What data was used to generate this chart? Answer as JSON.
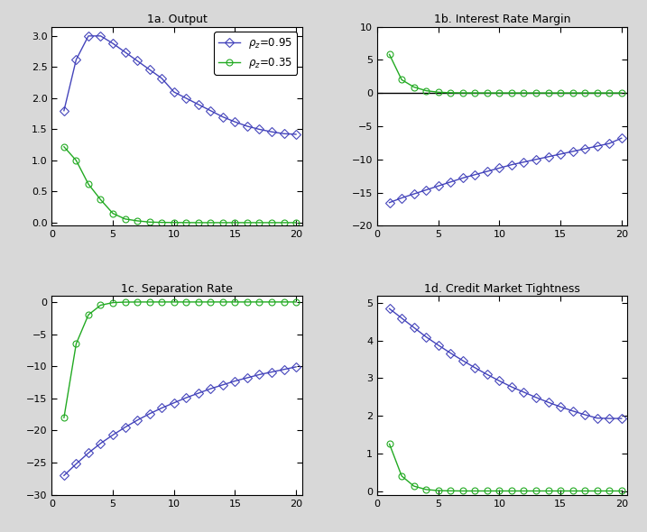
{
  "titles": [
    "1a. Output",
    "1b. Interest Rate Margin",
    "1c. Separation Rate",
    "1d. Credit Market Tightness"
  ],
  "x": [
    1,
    2,
    3,
    4,
    5,
    6,
    7,
    8,
    9,
    10,
    11,
    12,
    13,
    14,
    15,
    16,
    17,
    18,
    19,
    20
  ],
  "output_095": [
    1.8,
    2.62,
    3.0,
    3.0,
    2.88,
    2.74,
    2.6,
    2.46,
    2.32,
    2.1,
    2.0,
    1.9,
    1.8,
    1.7,
    1.62,
    1.55,
    1.5,
    1.46,
    1.43,
    1.42
  ],
  "output_035": [
    1.22,
    1.0,
    0.62,
    0.37,
    0.15,
    0.06,
    0.03,
    0.01,
    0.005,
    0.003,
    0.002,
    0.001,
    0.001,
    0.001,
    0.001,
    0.001,
    0.001,
    0.001,
    0.001,
    0.001
  ],
  "irm_095": [
    -16.5,
    -15.8,
    -15.2,
    -14.6,
    -14.0,
    -13.4,
    -12.8,
    -12.3,
    -11.8,
    -11.3,
    -10.8,
    -10.4,
    -10.0,
    -9.6,
    -9.2,
    -8.8,
    -8.4,
    -8.0,
    -7.6,
    -6.8
  ],
  "irm_035": [
    5.8,
    2.0,
    0.9,
    0.35,
    0.12,
    0.04,
    0.01,
    0.005,
    0.003,
    0.002,
    0.001,
    0.001,
    0.001,
    0.001,
    0.001,
    0.001,
    0.001,
    0.001,
    0.001,
    0.001
  ],
  "sep_095": [
    -27.0,
    -25.2,
    -23.5,
    -22.0,
    -20.7,
    -19.5,
    -18.4,
    -17.4,
    -16.5,
    -15.7,
    -14.9,
    -14.2,
    -13.5,
    -12.9,
    -12.3,
    -11.8,
    -11.3,
    -10.9,
    -10.5,
    -10.1
  ],
  "sep_035": [
    -18.0,
    -6.5,
    -2.0,
    -0.5,
    -0.1,
    -0.02,
    -0.005,
    -0.002,
    -0.001,
    -0.001,
    -0.001,
    -0.001,
    -0.001,
    -0.001,
    -0.001,
    -0.001,
    -0.001,
    -0.001,
    -0.001,
    -0.001
  ],
  "cmt_095": [
    4.85,
    4.6,
    4.35,
    4.1,
    3.88,
    3.67,
    3.47,
    3.28,
    3.1,
    2.93,
    2.77,
    2.63,
    2.49,
    2.36,
    2.24,
    2.13,
    2.03,
    1.94,
    1.93,
    1.93
  ],
  "cmt_035": [
    1.25,
    0.4,
    0.13,
    0.04,
    0.01,
    0.004,
    0.001,
    0.001,
    0.001,
    0.001,
    0.001,
    0.001,
    0.001,
    0.001,
    0.001,
    0.001,
    0.001,
    0.001,
    0.001,
    0.001
  ],
  "color_095": "#4444bb",
  "color_035": "#22aa22",
  "legend_label_095": "$\\rho_z$=0.95",
  "legend_label_035": "$\\rho_z$=0.35",
  "xlim": [
    0.5,
    20.5
  ],
  "xticks": [
    0,
    5,
    10,
    15,
    20
  ],
  "output_ylim": [
    -0.05,
    3.15
  ],
  "output_yticks": [
    0,
    0.5,
    1.0,
    1.5,
    2.0,
    2.5,
    3.0
  ],
  "irm_ylim": [
    -20,
    10
  ],
  "irm_yticks": [
    -20,
    -15,
    -10,
    -5,
    0,
    5,
    10
  ],
  "sep_ylim": [
    -30,
    1
  ],
  "sep_yticks": [
    -30,
    -25,
    -20,
    -15,
    -10,
    -5,
    0
  ],
  "cmt_ylim": [
    -0.1,
    5.2
  ],
  "cmt_yticks": [
    0,
    1,
    2,
    3,
    4,
    5
  ],
  "fig_facecolor": "#d8d8d8",
  "ax_facecolor": "#ffffff",
  "title_fontsize": 9,
  "tick_fontsize": 8,
  "legend_fontsize": 8.5,
  "linewidth": 1.0,
  "markersize": 5
}
